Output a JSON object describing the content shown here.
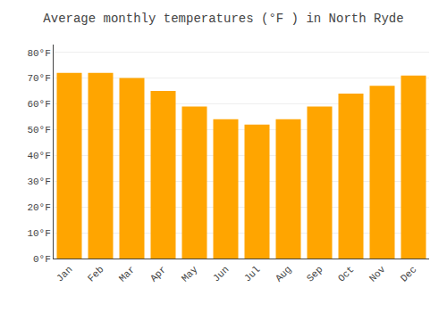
{
  "chart_data": {
    "type": "bar",
    "title": "Average monthly temperatures (°F ) in North Ryde",
    "categories": [
      "Jan",
      "Feb",
      "Mar",
      "Apr",
      "May",
      "Jun",
      "Jul",
      "Aug",
      "Sep",
      "Oct",
      "Nov",
      "Dec"
    ],
    "values": [
      72,
      72,
      70,
      65,
      59,
      54,
      52,
      54,
      59,
      64,
      67,
      71
    ],
    "color": "#FFA500",
    "ylim": [
      0,
      83
    ],
    "yticks": [
      {
        "value": 0,
        "label": "0°F"
      },
      {
        "value": 10,
        "label": "10°F"
      },
      {
        "value": 20,
        "label": "20°F"
      },
      {
        "value": 30,
        "label": "30°F"
      },
      {
        "value": 40,
        "label": "40°F"
      },
      {
        "value": 50,
        "label": "50°F"
      },
      {
        "value": 60,
        "label": "60°F"
      },
      {
        "value": 70,
        "label": "70°F"
      },
      {
        "value": 80,
        "label": "80°F"
      }
    ],
    "grid": true
  }
}
